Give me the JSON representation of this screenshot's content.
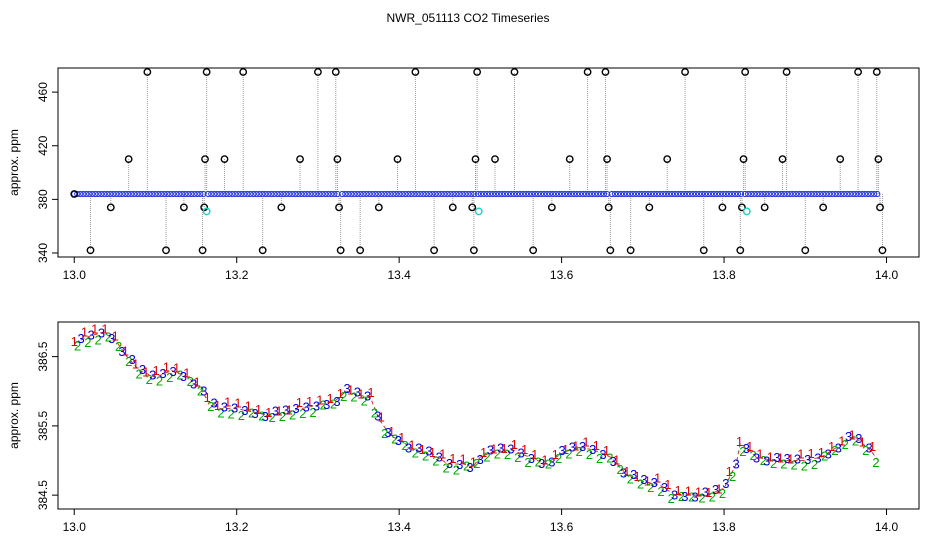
{
  "title": "NWR_051113  CO2 Timeseries",
  "chart_data": [
    {
      "type": "scatter",
      "ylabel": "approx. ppm",
      "xlim": [
        12.98,
        14.04
      ],
      "ylim": [
        337,
        478
      ],
      "xticks": [
        13.0,
        13.2,
        13.4,
        13.6,
        13.8,
        14.0
      ],
      "xtick_labels": [
        "13.0",
        "13.2",
        "13.4",
        "13.6",
        "13.8",
        "14.0"
      ],
      "yticks": [
        340,
        380,
        420,
        460
      ],
      "ytick_labels": [
        "340",
        "380",
        "420",
        "460"
      ],
      "baseline_segments": [
        {
          "x0": 13.0,
          "x1": 13.162,
          "y": 384
        },
        {
          "x0": 13.165,
          "x1": 13.327,
          "y": 384
        },
        {
          "x0": 13.33,
          "x1": 13.493,
          "y": 384
        },
        {
          "x0": 13.497,
          "x1": 13.658,
          "y": 384
        },
        {
          "x0": 13.662,
          "x1": 13.822,
          "y": 384
        },
        {
          "x0": 13.826,
          "x1": 13.99,
          "y": 384
        }
      ],
      "outliers": [
        {
          "x": 13.0,
          "y": 384
        },
        {
          "x": 13.02,
          "y": 342
        },
        {
          "x": 13.045,
          "y": 374
        },
        {
          "x": 13.067,
          "y": 410
        },
        {
          "x": 13.09,
          "y": 475
        },
        {
          "x": 13.113,
          "y": 342
        },
        {
          "x": 13.135,
          "y": 374
        },
        {
          "x": 13.158,
          "y": 342
        },
        {
          "x": 13.16,
          "y": 374
        },
        {
          "x": 13.161,
          "y": 410
        },
        {
          "x": 13.163,
          "y": 475
        },
        {
          "x": 13.185,
          "y": 410
        },
        {
          "x": 13.208,
          "y": 475
        },
        {
          "x": 13.232,
          "y": 342
        },
        {
          "x": 13.255,
          "y": 374
        },
        {
          "x": 13.278,
          "y": 410
        },
        {
          "x": 13.3,
          "y": 475
        },
        {
          "x": 13.322,
          "y": 475
        },
        {
          "x": 13.324,
          "y": 410
        },
        {
          "x": 13.326,
          "y": 374
        },
        {
          "x": 13.328,
          "y": 342
        },
        {
          "x": 13.352,
          "y": 342
        },
        {
          "x": 13.375,
          "y": 374
        },
        {
          "x": 13.398,
          "y": 410
        },
        {
          "x": 13.42,
          "y": 475
        },
        {
          "x": 13.443,
          "y": 342
        },
        {
          "x": 13.466,
          "y": 374
        },
        {
          "x": 13.49,
          "y": 374
        },
        {
          "x": 13.492,
          "y": 342
        },
        {
          "x": 13.494,
          "y": 410
        },
        {
          "x": 13.496,
          "y": 475
        },
        {
          "x": 13.518,
          "y": 410
        },
        {
          "x": 13.542,
          "y": 475
        },
        {
          "x": 13.565,
          "y": 342
        },
        {
          "x": 13.588,
          "y": 374
        },
        {
          "x": 13.61,
          "y": 410
        },
        {
          "x": 13.632,
          "y": 475
        },
        {
          "x": 13.654,
          "y": 475
        },
        {
          "x": 13.656,
          "y": 410
        },
        {
          "x": 13.658,
          "y": 374
        },
        {
          "x": 13.66,
          "y": 342
        },
        {
          "x": 13.685,
          "y": 342
        },
        {
          "x": 13.708,
          "y": 374
        },
        {
          "x": 13.73,
          "y": 410
        },
        {
          "x": 13.752,
          "y": 475
        },
        {
          "x": 13.775,
          "y": 342
        },
        {
          "x": 13.798,
          "y": 374
        },
        {
          "x": 13.82,
          "y": 342
        },
        {
          "x": 13.822,
          "y": 374
        },
        {
          "x": 13.824,
          "y": 410
        },
        {
          "x": 13.826,
          "y": 475
        },
        {
          "x": 13.85,
          "y": 374
        },
        {
          "x": 13.872,
          "y": 410
        },
        {
          "x": 13.877,
          "y": 475
        },
        {
          "x": 13.9,
          "y": 342
        },
        {
          "x": 13.922,
          "y": 374
        },
        {
          "x": 13.943,
          "y": 410
        },
        {
          "x": 13.965,
          "y": 475
        },
        {
          "x": 13.988,
          "y": 475
        },
        {
          "x": 13.99,
          "y": 410
        },
        {
          "x": 13.992,
          "y": 374
        },
        {
          "x": 13.995,
          "y": 342
        }
      ],
      "calibration_points": [
        {
          "x": 13.163,
          "y": 371
        },
        {
          "x": 13.498,
          "y": 371
        },
        {
          "x": 13.828,
          "y": 371
        }
      ],
      "colors": {
        "baseline": "#2233dd",
        "outlier": "#000000",
        "stem": "#999999",
        "calibration": "#22cccc"
      }
    },
    {
      "type": "line",
      "ylabel": "approx. ppm",
      "xlim": [
        12.98,
        14.04
      ],
      "ylim": [
        384.3,
        387.0
      ],
      "xticks": [
        13.0,
        13.2,
        13.4,
        13.6,
        13.8,
        14.0
      ],
      "xtick_labels": [
        "13.0",
        "13.2",
        "13.4",
        "13.6",
        "13.8",
        "14.0"
      ],
      "yticks": [
        384.5,
        385.5,
        386.5
      ],
      "ytick_labels": [
        "384.5",
        "385.5",
        "386.5"
      ],
      "series_labels": [
        "1",
        "2",
        "3"
      ],
      "series_colors": [
        "#dd0000",
        "#00aa00",
        "#0000dd"
      ],
      "x": [
        13.0,
        13.02,
        13.035,
        13.05,
        13.065,
        13.08,
        13.1,
        13.12,
        13.14,
        13.155,
        13.165,
        13.18,
        13.2,
        13.22,
        13.24,
        13.26,
        13.28,
        13.3,
        13.32,
        13.335,
        13.35,
        13.365,
        13.375,
        13.39,
        13.4,
        13.42,
        13.44,
        13.46,
        13.48,
        13.49,
        13.5,
        13.52,
        13.54,
        13.56,
        13.58,
        13.6,
        13.62,
        13.64,
        13.66,
        13.68,
        13.7,
        13.72,
        13.74,
        13.76,
        13.78,
        13.8,
        13.815,
        13.82,
        13.84,
        13.86,
        13.88,
        13.9,
        13.92,
        13.94,
        13.96,
        13.98,
        13.99
      ],
      "values": [
        386.7,
        386.8,
        386.85,
        386.75,
        386.5,
        386.3,
        386.2,
        386.3,
        386.2,
        386.05,
        385.85,
        385.75,
        385.75,
        385.7,
        385.65,
        385.7,
        385.75,
        385.8,
        385.85,
        386.0,
        385.95,
        385.9,
        385.6,
        385.35,
        385.3,
        385.15,
        385.1,
        384.95,
        384.95,
        384.9,
        385.05,
        385.15,
        385.15,
        385.05,
        384.95,
        385.1,
        385.2,
        385.15,
        385.05,
        384.8,
        384.7,
        384.65,
        384.5,
        384.5,
        384.5,
        384.6,
        384.95,
        385.25,
        385.05,
        385.0,
        385.0,
        385.0,
        385.05,
        385.2,
        385.35,
        385.15,
        385.0
      ]
    }
  ]
}
